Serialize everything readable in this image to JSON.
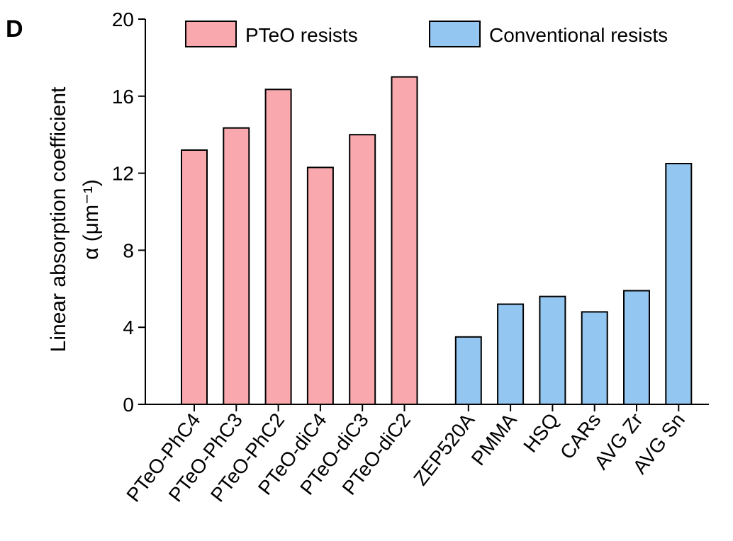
{
  "chart_data": {
    "type": "bar",
    "panel_label": "D",
    "ylabel": [
      "Linear absorption coefficient",
      "α (μm⁻¹)"
    ],
    "categories": [
      "PTeO-PhC4",
      "PTeO-PhC3",
      "PTeO-PhC2",
      "PTeO-diC4",
      "PTeO-diC3",
      "PTeO-diC2",
      "ZEP520A",
      "PMMA",
      "HSQ",
      "CARs",
      "AVG Zr",
      "AVG Sn"
    ],
    "series": [
      {
        "name": "PTeO resists",
        "color": "#f9a8ae",
        "values": [
          13.2,
          14.35,
          16.35,
          12.3,
          14.0,
          17.0,
          null,
          null,
          null,
          null,
          null,
          null
        ]
      },
      {
        "name": "Conventional resists",
        "color": "#93c6f1",
        "values": [
          null,
          null,
          null,
          null,
          null,
          null,
          3.5,
          5.2,
          5.6,
          4.8,
          5.9,
          12.5
        ]
      }
    ],
    "ylim": [
      0,
      20
    ],
    "yticks": [
      0,
      4,
      8,
      12,
      16,
      20
    ],
    "legend": "top"
  }
}
